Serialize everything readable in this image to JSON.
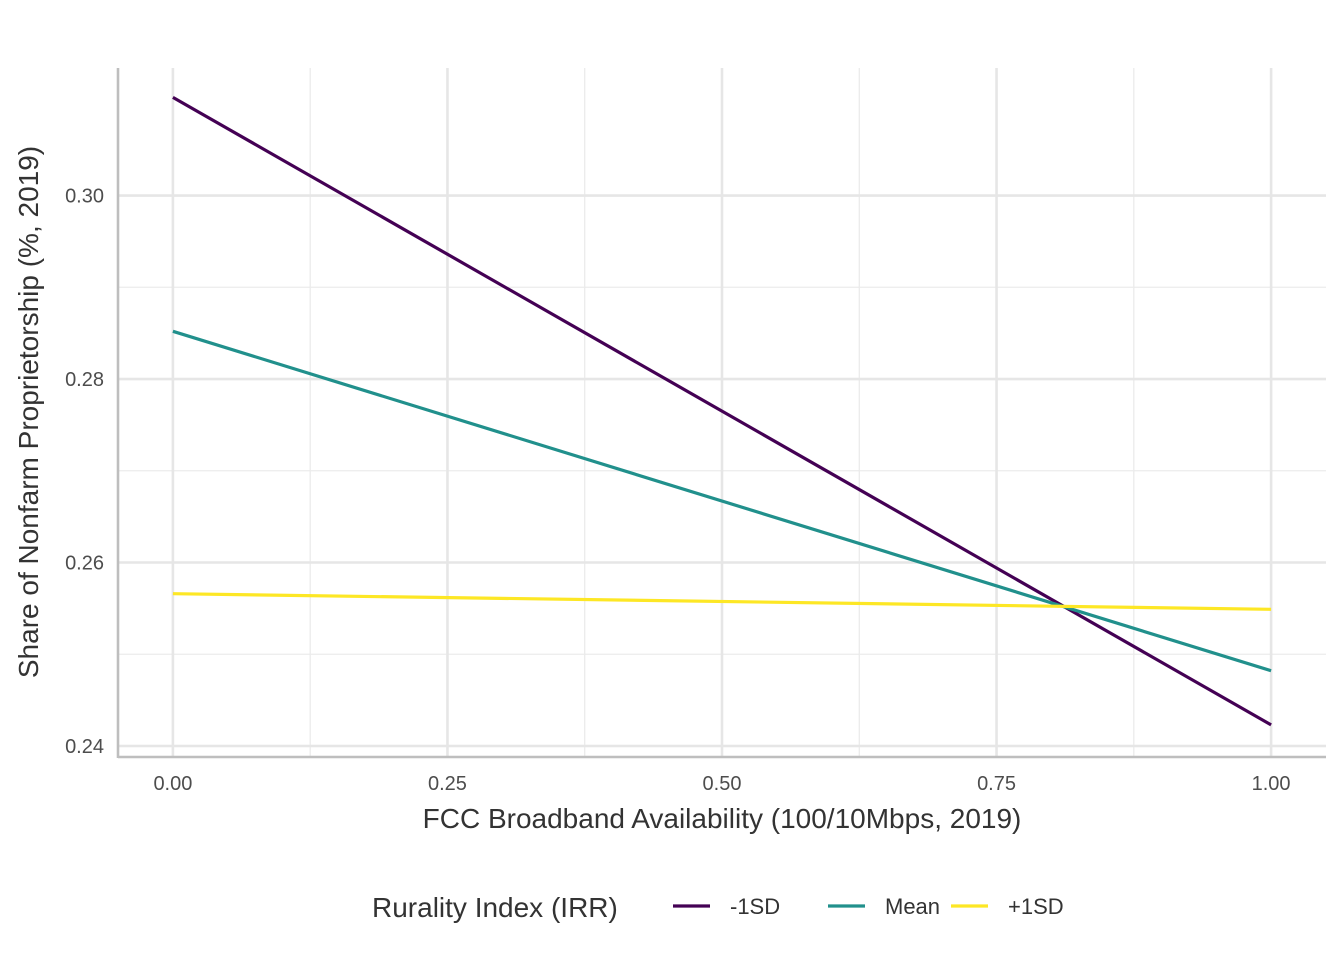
{
  "chart_data": {
    "type": "line",
    "title": "",
    "xlabel": "FCC Broadband Availability (100/10Mbps, 2019)",
    "ylabel": "Share of Nonfarm Proprietorship (%, 2019)",
    "xlim": [
      -0.05,
      1.05
    ],
    "ylim": [
      0.2388,
      0.3139
    ],
    "x_ticks": [
      0.0,
      0.25,
      0.5,
      0.75,
      1.0
    ],
    "x_tick_labels": [
      "0.00",
      "0.25",
      "0.50",
      "0.75",
      "1.00"
    ],
    "y_ticks": [
      0.24,
      0.26,
      0.28,
      0.3
    ],
    "y_tick_labels": [
      "0.24",
      "0.26",
      "0.28",
      "0.30"
    ],
    "grid": true,
    "legend": {
      "title": "Rurality Index (IRR)",
      "position": "bottom"
    },
    "series": [
      {
        "name": "-1SD",
        "color": "#440154",
        "x": [
          0.0,
          1.0
        ],
        "y": [
          0.3107,
          0.2423
        ]
      },
      {
        "name": "Mean",
        "color": "#21908C",
        "x": [
          0.0,
          1.0
        ],
        "y": [
          0.2852,
          0.2482
        ]
      },
      {
        "name": "+1SD",
        "color": "#FDE725",
        "x": [
          0.0,
          1.0
        ],
        "y": [
          0.2566,
          0.2549
        ]
      }
    ]
  }
}
